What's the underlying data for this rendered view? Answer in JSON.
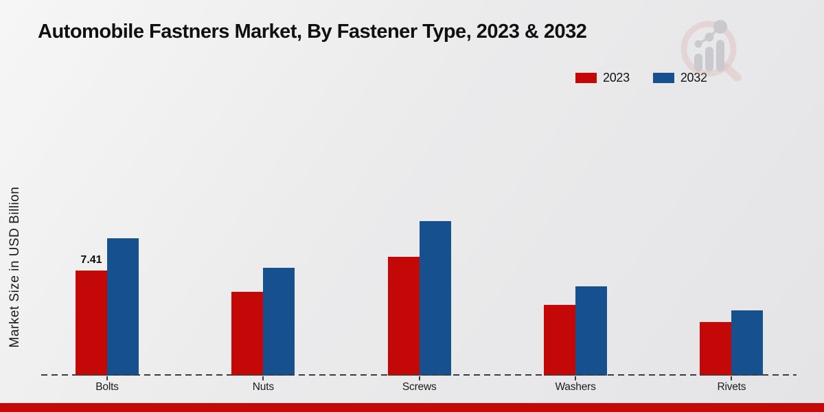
{
  "title": "Automobile Fastners Market, By Fastener Type, 2023 & 2032",
  "ylabel": "Market Size in USD Billion",
  "legend": [
    {
      "label": "2023",
      "color": "#c40808"
    },
    {
      "label": "2032",
      "color": "#17508e"
    }
  ],
  "colors": {
    "bar_2023": "#c40808",
    "bar_2032": "#17508e",
    "bottom_stripe": "#c50808",
    "baseline": "#3c3c3c"
  },
  "chart_data": {
    "type": "bar",
    "categories": [
      "Bolts",
      "Nuts",
      "Screws",
      "Washers",
      "Rivets"
    ],
    "series": [
      {
        "name": "2023",
        "color": "#c40808",
        "values": [
          7.41,
          5.9,
          8.4,
          5.0,
          3.8
        ]
      },
      {
        "name": "2032",
        "color": "#17508e",
        "values": [
          9.7,
          7.6,
          10.9,
          6.3,
          4.6
        ]
      }
    ],
    "title": "Automobile Fastners Market, By Fastener Type, 2023 & 2032",
    "xlabel": "",
    "ylabel": "Market Size in USD Billion",
    "ylim": [
      0,
      12
    ],
    "grid": false,
    "baseline_style": "dashed",
    "legend_position": "top-right",
    "data_labels": [
      {
        "series": "2023",
        "category": "Bolts",
        "text": "7.41"
      }
    ]
  }
}
